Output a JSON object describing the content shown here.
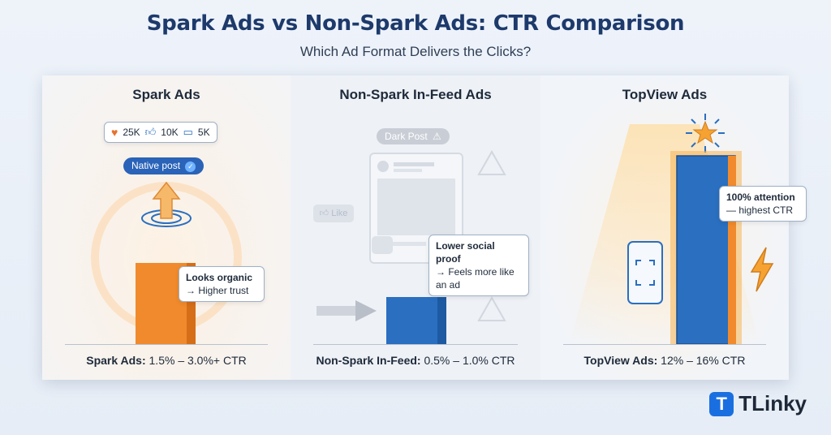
{
  "title": "Spark Ads vs Non-Spark Ads: CTR Comparison",
  "subtitle": "Which Ad Format Delivers the Clicks?",
  "brand": "TLinky",
  "brand_letter": "T",
  "colors": {
    "spark": "#f08a2c",
    "non_spark": "#2a6fc0",
    "topview": "#2a6fc0",
    "accent": "#1d3a6b"
  },
  "panels": [
    {
      "title": "Spark Ads",
      "stat_label": "Spark Ads:",
      "stat_value": "1.5% – 3.0%+ CTR",
      "engagement": {
        "likes": "25K",
        "thumbs": "10K",
        "comments": "5K"
      },
      "badge": "Native post",
      "callout_bold": "Looks organic",
      "callout_text": "→ Higher trust"
    },
    {
      "title": "Non-Spark In-Feed Ads",
      "stat_label": "Non-Spark In-Feed:",
      "stat_value": "0.5% – 1.0% CTR",
      "badge": "Dark Post",
      "like_label": "Like",
      "callout_bold": "Lower social proof",
      "callout_text": "→ Feels more like an ad"
    },
    {
      "title": "TopView Ads",
      "stat_label": "TopView Ads:",
      "stat_value": "12% – 16% CTR",
      "callout_bold": "100% attention",
      "callout_text": "— highest CTR"
    }
  ],
  "chart_data": {
    "type": "bar",
    "title": "Spark Ads vs Non-Spark Ads: CTR Comparison",
    "categories": [
      "Spark Ads",
      "Non-Spark In-Feed Ads",
      "TopView Ads"
    ],
    "series": [
      {
        "values_low": [
          1.5,
          0.5,
          12
        ],
        "values_high": [
          3.0,
          1.0,
          16
        ]
      }
    ],
    "unit": "% CTR",
    "ylim": [
      0,
      16
    ],
    "grid": false
  }
}
